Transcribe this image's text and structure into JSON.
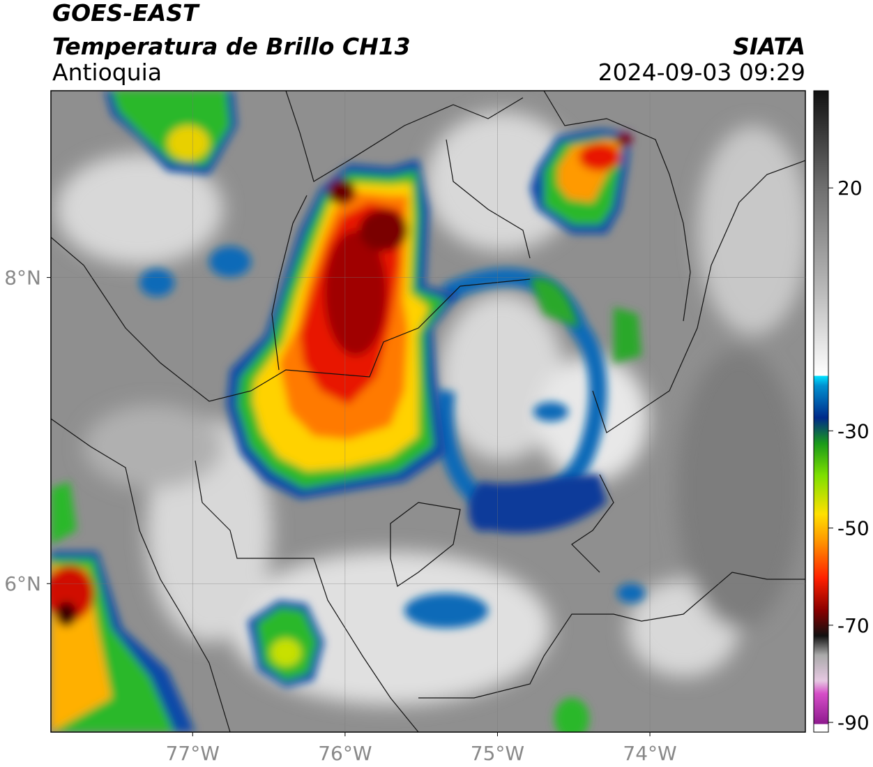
{
  "header": {
    "title": "GOES-EAST",
    "subtitle": "Temperatura de Brillo CH13",
    "region": "Antioquia",
    "source": "SIATA",
    "datetime": "2024-09-03 09:29"
  },
  "map": {
    "xlim": [
      -77.93,
      -72.98
    ],
    "ylim": [
      5.03,
      9.22
    ],
    "grid": true,
    "xticks": [
      {
        "value": -77,
        "label": "77°W"
      },
      {
        "value": -76,
        "label": "76°W"
      },
      {
        "value": -75,
        "label": "75°W"
      },
      {
        "value": -74,
        "label": "74°W"
      }
    ],
    "yticks": [
      {
        "value": 8,
        "label": "8°N"
      },
      {
        "value": 6,
        "label": "6°N"
      }
    ]
  },
  "colorbar": {
    "lim": [
      -92,
      40
    ],
    "ticks": [
      20,
      -30,
      -50,
      -70,
      -90
    ]
  }
}
